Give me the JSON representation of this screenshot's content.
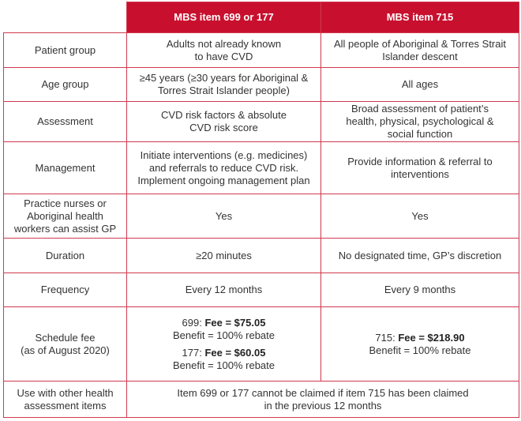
{
  "header": {
    "col1": "MBS item 699 or 177",
    "col2": "MBS item 715"
  },
  "rows": [
    {
      "label": "Patient group",
      "a": [
        "Adults not already known",
        "to have CVD"
      ],
      "b": [
        "All people of Aboriginal & Torres Strait",
        "Islander descent"
      ]
    },
    {
      "label": "Age group",
      "a": [
        "≥45 years (≥30 years for Aboriginal &",
        "Torres Strait Islander people)"
      ],
      "b": [
        "All ages"
      ]
    },
    {
      "label": "Assessment",
      "a": [
        "CVD risk factors & absolute",
        "CVD risk score"
      ],
      "b": [
        "Broad assessment of patient’s",
        "health, physical, psychological &",
        "social function"
      ]
    },
    {
      "label": "Management",
      "a": [
        "Initiate interventions (e.g. medicines)",
        "and referrals to reduce CVD risk.",
        "Implement ongoing management plan"
      ],
      "b": [
        "Provide information & referral to",
        "interventions"
      ]
    },
    {
      "label_lines": [
        "Practice nurses or",
        "Aboriginal health",
        "workers can assist GP"
      ],
      "a": [
        "Yes"
      ],
      "b": [
        "Yes"
      ]
    },
    {
      "label": "Duration",
      "a": [
        "≥20 minutes"
      ],
      "b": [
        "No designated time, GP’s discretion"
      ]
    },
    {
      "label": "Frequency",
      "a": [
        "Every 12 months"
      ],
      "b": [
        "Every 9 months"
      ]
    }
  ],
  "fee": {
    "label_lines": [
      "Schedule fee",
      "(as of August 2020)"
    ],
    "a": [
      {
        "item": "699: ",
        "fee": "Fee = $75.05",
        "benefit": "Benefit = 100% rebate"
      },
      {
        "item": "177: ",
        "fee": "Fee = $60.05",
        "benefit": "Benefit = 100% rebate"
      }
    ],
    "b": {
      "item": "715: ",
      "fee": "Fee = $218.90",
      "benefit": "Benefit = 100% rebate"
    }
  },
  "use": {
    "label_lines": [
      "Use with other health",
      "assessment items"
    ],
    "text": [
      "Item 699 or 177 cannot be claimed if item 715 has been claimed",
      "in the previous 12 months"
    ]
  },
  "colors": {
    "header_bg": "#c8102e",
    "border": "#d0394f"
  }
}
